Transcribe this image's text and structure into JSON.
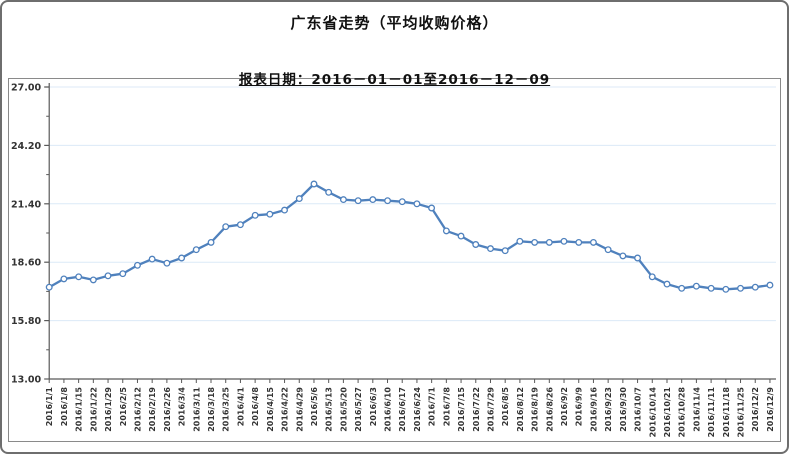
{
  "header": {
    "title": "广东省走势（平均收购价格）",
    "subtitle": "报表日期：2016－01－01至2016－12－09"
  },
  "colors": {
    "line": "#4f81bd",
    "marker_fill": "#ffffff",
    "gridline": "#dceaf7",
    "axis": "#595959",
    "tick_label": "#333333"
  },
  "chart_data": {
    "type": "line",
    "title": "广东省走势（平均收购价格）",
    "subtitle": "报表日期：2016－01－01至2016－12－09",
    "x": [
      "2016/1/1",
      "2016/1/8",
      "2016/1/15",
      "2016/1/22",
      "2016/1/29",
      "2016/2/5",
      "2016/2/12",
      "2016/2/19",
      "2016/2/26",
      "2016/3/4",
      "2016/3/11",
      "2016/3/18",
      "2016/3/25",
      "2016/4/1",
      "2016/4/8",
      "2016/4/15",
      "2016/4/22",
      "2016/4/29",
      "2016/5/6",
      "2016/5/13",
      "2016/5/20",
      "2016/5/27",
      "2016/6/3",
      "2016/6/10",
      "2016/6/17",
      "2016/6/24",
      "2016/7/1",
      "2016/7/8",
      "2016/7/15",
      "2016/7/22",
      "2016/7/29",
      "2016/8/5",
      "2016/8/12",
      "2016/8/19",
      "2016/8/26",
      "2016/9/2",
      "2016/9/9",
      "2016/9/16",
      "2016/9/23",
      "2016/9/30",
      "2016/10/7",
      "2016/10/14",
      "2016/10/21",
      "2016/10/28",
      "2016/11/4",
      "2016/11/11",
      "2016/11/18",
      "2016/11/25",
      "2016/12/2",
      "2016/12/9"
    ],
    "series": [
      {
        "name": "平均收购价格",
        "values": [
          17.4,
          17.8,
          17.9,
          17.75,
          17.95,
          18.05,
          18.45,
          18.75,
          18.55,
          18.8,
          19.2,
          19.55,
          20.3,
          20.4,
          20.85,
          20.9,
          21.1,
          21.65,
          22.35,
          21.95,
          21.6,
          21.55,
          21.6,
          21.55,
          21.5,
          21.4,
          21.2,
          20.1,
          19.85,
          19.45,
          19.25,
          19.15,
          19.6,
          19.55,
          19.55,
          19.6,
          19.55,
          19.55,
          19.2,
          18.9,
          18.8,
          17.9,
          17.55,
          17.35,
          17.45,
          17.35,
          17.3,
          17.35,
          17.4,
          17.5
        ]
      }
    ],
    "xlabel": "",
    "ylabel": "",
    "ylim": [
      13.0,
      27.0
    ],
    "yticks": [
      13.0,
      15.8,
      18.6,
      21.4,
      24.2,
      27.0
    ],
    "ytick_labels": [
      "13.00",
      "15.80",
      "18.60",
      "21.40",
      "24.20",
      "27.00"
    ],
    "grid": true,
    "legend": false,
    "marker": "open-circle"
  }
}
